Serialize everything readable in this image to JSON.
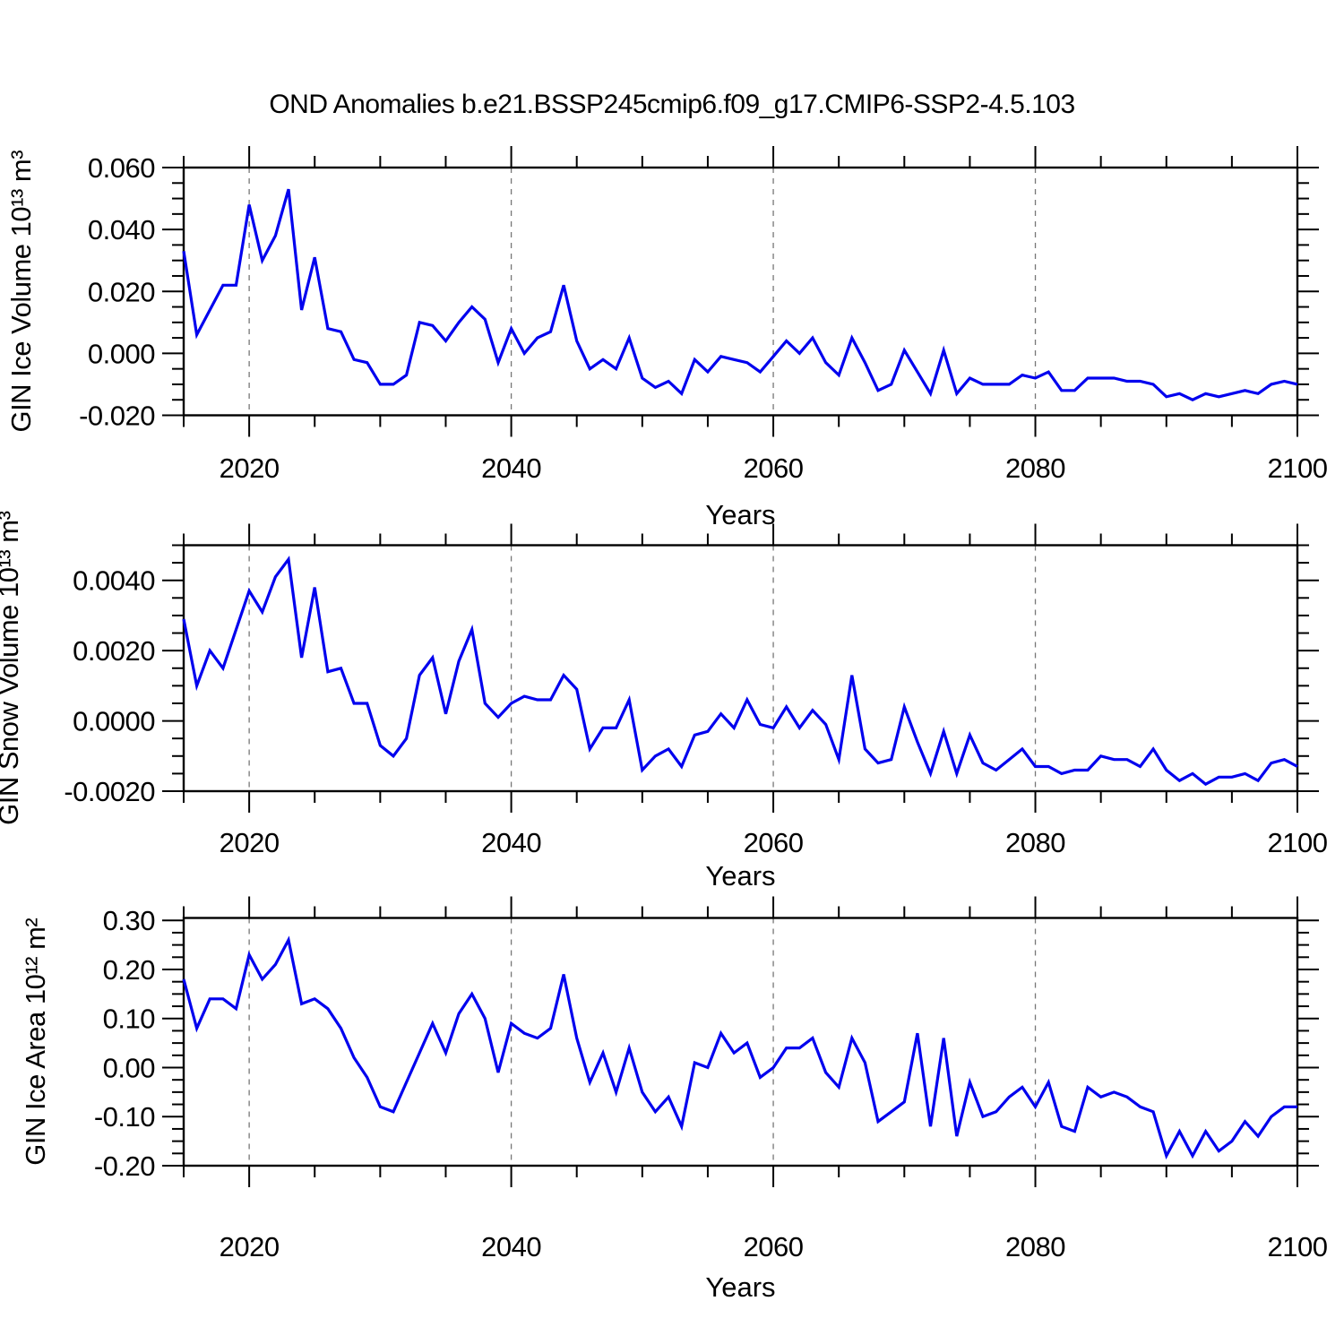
{
  "title": "OND Anomalies b.e21.BSSP245cmip6.f09_g17.CMIP6-SSP2-4.5.103",
  "colors": {
    "line": "#0000ee",
    "grid": "#777777",
    "axis": "#000000"
  },
  "chart_data": [
    {
      "type": "line",
      "id": "gin-ice-volume",
      "ylabel": "GIN Ice Volume 10¹³ m³",
      "xlabel": "Years",
      "xlim": [
        2015,
        2100
      ],
      "ylim": [
        -0.02,
        0.06
      ],
      "x_major_ticks": [
        2020,
        2040,
        2060,
        2080,
        2100
      ],
      "x_tick_labels": [
        "2020",
        "2040",
        "2060",
        "2080",
        "2100"
      ],
      "x_minor_step": 5,
      "grid_years": [
        2020,
        2040,
        2060,
        2080
      ],
      "grid": "vertical-dashed",
      "y_ticks": [
        0.06,
        0.04,
        0.02,
        0.0,
        -0.02
      ],
      "y_tick_labels": [
        "0.060",
        "0.040",
        "0.020",
        "0.000",
        "-0.020"
      ],
      "y_minor_step": 0.005,
      "x": [
        2015,
        2016,
        2017,
        2018,
        2019,
        2020,
        2021,
        2022,
        2023,
        2024,
        2025,
        2026,
        2027,
        2028,
        2029,
        2030,
        2031,
        2032,
        2033,
        2034,
        2035,
        2036,
        2037,
        2038,
        2039,
        2040,
        2041,
        2042,
        2043,
        2044,
        2045,
        2046,
        2047,
        2048,
        2049,
        2050,
        2051,
        2052,
        2053,
        2054,
        2055,
        2056,
        2057,
        2058,
        2059,
        2060,
        2061,
        2062,
        2063,
        2064,
        2065,
        2066,
        2067,
        2068,
        2069,
        2070,
        2071,
        2072,
        2073,
        2074,
        2075,
        2076,
        2077,
        2078,
        2079,
        2080,
        2081,
        2082,
        2083,
        2084,
        2085,
        2086,
        2087,
        2088,
        2089,
        2090,
        2091,
        2092,
        2093,
        2094,
        2095,
        2096,
        2097,
        2098,
        2099,
        2100
      ],
      "values": [
        0.033,
        0.006,
        0.014,
        0.022,
        0.022,
        0.048,
        0.03,
        0.038,
        0.053,
        0.014,
        0.031,
        0.008,
        0.007,
        -0.002,
        -0.003,
        -0.01,
        -0.01,
        -0.007,
        0.01,
        0.009,
        0.004,
        0.01,
        0.015,
        0.011,
        -0.003,
        0.008,
        0.0,
        0.005,
        0.007,
        0.022,
        0.004,
        -0.005,
        -0.002,
        -0.005,
        0.005,
        -0.008,
        -0.011,
        -0.009,
        -0.013,
        -0.002,
        -0.006,
        -0.001,
        -0.002,
        -0.003,
        -0.006,
        -0.001,
        0.004,
        0.0,
        0.005,
        -0.003,
        -0.007,
        0.005,
        -0.003,
        -0.012,
        -0.01,
        0.001,
        -0.006,
        -0.013,
        0.001,
        -0.013,
        -0.008,
        -0.01,
        -0.01,
        -0.01,
        -0.007,
        -0.008,
        -0.006,
        -0.012,
        -0.012,
        -0.008,
        -0.008,
        -0.008,
        -0.009,
        -0.009,
        -0.01,
        -0.014,
        -0.013,
        -0.015,
        -0.013,
        -0.014,
        -0.013,
        -0.012,
        -0.013,
        -0.01,
        -0.009,
        -0.01
      ]
    },
    {
      "type": "line",
      "id": "gin-snow-volume",
      "ylabel": "GIN Snow Volume 10¹³ m³",
      "xlabel": "Years",
      "xlim": [
        2015,
        2100
      ],
      "ylim": [
        -0.002,
        0.005
      ],
      "x_major_ticks": [
        2020,
        2040,
        2060,
        2080,
        2100
      ],
      "x_tick_labels": [
        "2020",
        "2040",
        "2060",
        "2080",
        "2100"
      ],
      "x_minor_step": 5,
      "grid_years": [
        2020,
        2040,
        2060,
        2080
      ],
      "grid": "vertical-dashed",
      "y_ticks": [
        0.004,
        0.002,
        0.0,
        -0.002
      ],
      "y_tick_labels": [
        "0.0040",
        "0.0020",
        "0.0000",
        "-0.0020"
      ],
      "y_minor_step": 0.0005,
      "x": [
        2015,
        2016,
        2017,
        2018,
        2019,
        2020,
        2021,
        2022,
        2023,
        2024,
        2025,
        2026,
        2027,
        2028,
        2029,
        2030,
        2031,
        2032,
        2033,
        2034,
        2035,
        2036,
        2037,
        2038,
        2039,
        2040,
        2041,
        2042,
        2043,
        2044,
        2045,
        2046,
        2047,
        2048,
        2049,
        2050,
        2051,
        2052,
        2053,
        2054,
        2055,
        2056,
        2057,
        2058,
        2059,
        2060,
        2061,
        2062,
        2063,
        2064,
        2065,
        2066,
        2067,
        2068,
        2069,
        2070,
        2071,
        2072,
        2073,
        2074,
        2075,
        2076,
        2077,
        2078,
        2079,
        2080,
        2081,
        2082,
        2083,
        2084,
        2085,
        2086,
        2087,
        2088,
        2089,
        2090,
        2091,
        2092,
        2093,
        2094,
        2095,
        2096,
        2097,
        2098,
        2099,
        2100
      ],
      "values": [
        0.0029,
        0.001,
        0.002,
        0.0015,
        0.0026,
        0.0037,
        0.0031,
        0.0041,
        0.0046,
        0.0018,
        0.0038,
        0.0014,
        0.0015,
        0.0005,
        0.0005,
        -0.0007,
        -0.001,
        -0.0005,
        0.0013,
        0.0018,
        0.0002,
        0.0017,
        0.0026,
        0.0005,
        0.0001,
        0.0005,
        0.0007,
        0.0006,
        0.0006,
        0.0013,
        0.0009,
        -0.0008,
        -0.0002,
        -0.0002,
        0.0006,
        -0.0014,
        -0.001,
        -0.0008,
        -0.0013,
        -0.0004,
        -0.0003,
        0.0002,
        -0.0002,
        0.0006,
        -0.0001,
        -0.0002,
        0.0004,
        -0.0002,
        0.0003,
        -0.0001,
        -0.0011,
        0.0013,
        -0.0008,
        -0.0012,
        -0.0011,
        0.0004,
        -0.0006,
        -0.0015,
        -0.0003,
        -0.0015,
        -0.0004,
        -0.0012,
        -0.0014,
        -0.0011,
        -0.0008,
        -0.0013,
        -0.0013,
        -0.0015,
        -0.0014,
        -0.0014,
        -0.001,
        -0.0011,
        -0.0011,
        -0.0013,
        -0.0008,
        -0.0014,
        -0.0017,
        -0.0015,
        -0.0018,
        -0.0016,
        -0.0016,
        -0.0015,
        -0.0017,
        -0.0012,
        -0.0011,
        -0.0013
      ]
    },
    {
      "type": "line",
      "id": "gin-ice-area",
      "ylabel": "GIN Ice Area 10¹² m²",
      "xlabel": "Years",
      "xlim": [
        2015,
        2100
      ],
      "ylim": [
        -0.2,
        0.305
      ],
      "x_major_ticks": [
        2020,
        2040,
        2060,
        2080,
        2100
      ],
      "x_tick_labels": [
        "2020",
        "2040",
        "2060",
        "2080",
        "2100"
      ],
      "x_minor_step": 5,
      "grid_years": [
        2020,
        2040,
        2060,
        2080
      ],
      "grid": "vertical-dashed",
      "y_ticks": [
        0.3,
        0.2,
        0.1,
        0.0,
        -0.1,
        -0.2
      ],
      "y_tick_labels": [
        "0.30",
        "0.20",
        "0.10",
        "0.00",
        "-0.10",
        "-0.20"
      ],
      "y_minor_step": 0.025,
      "x": [
        2015,
        2016,
        2017,
        2018,
        2019,
        2020,
        2021,
        2022,
        2023,
        2024,
        2025,
        2026,
        2027,
        2028,
        2029,
        2030,
        2031,
        2032,
        2033,
        2034,
        2035,
        2036,
        2037,
        2038,
        2039,
        2040,
        2041,
        2042,
        2043,
        2044,
        2045,
        2046,
        2047,
        2048,
        2049,
        2050,
        2051,
        2052,
        2053,
        2054,
        2055,
        2056,
        2057,
        2058,
        2059,
        2060,
        2061,
        2062,
        2063,
        2064,
        2065,
        2066,
        2067,
        2068,
        2069,
        2070,
        2071,
        2072,
        2073,
        2074,
        2075,
        2076,
        2077,
        2078,
        2079,
        2080,
        2081,
        2082,
        2083,
        2084,
        2085,
        2086,
        2087,
        2088,
        2089,
        2090,
        2091,
        2092,
        2093,
        2094,
        2095,
        2096,
        2097,
        2098,
        2099,
        2100
      ],
      "values": [
        0.18,
        0.08,
        0.14,
        0.14,
        0.12,
        0.23,
        0.18,
        0.21,
        0.26,
        0.13,
        0.14,
        0.12,
        0.08,
        0.02,
        -0.02,
        -0.08,
        -0.09,
        -0.03,
        0.03,
        0.09,
        0.03,
        0.11,
        0.15,
        0.1,
        -0.01,
        0.09,
        0.07,
        0.06,
        0.08,
        0.19,
        0.06,
        -0.03,
        0.03,
        -0.05,
        0.04,
        -0.05,
        -0.09,
        -0.06,
        -0.12,
        0.01,
        0.0,
        0.07,
        0.03,
        0.05,
        -0.02,
        0.0,
        0.04,
        0.04,
        0.06,
        -0.01,
        -0.04,
        0.06,
        0.01,
        -0.11,
        -0.09,
        -0.07,
        0.07,
        -0.12,
        0.06,
        -0.14,
        -0.03,
        -0.1,
        -0.09,
        -0.06,
        -0.04,
        -0.08,
        -0.03,
        -0.12,
        -0.13,
        -0.04,
        -0.06,
        -0.05,
        -0.06,
        -0.08,
        -0.09,
        -0.18,
        -0.13,
        -0.18,
        -0.13,
        -0.17,
        -0.15,
        -0.11,
        -0.14,
        -0.1,
        -0.08,
        -0.08
      ]
    }
  ]
}
